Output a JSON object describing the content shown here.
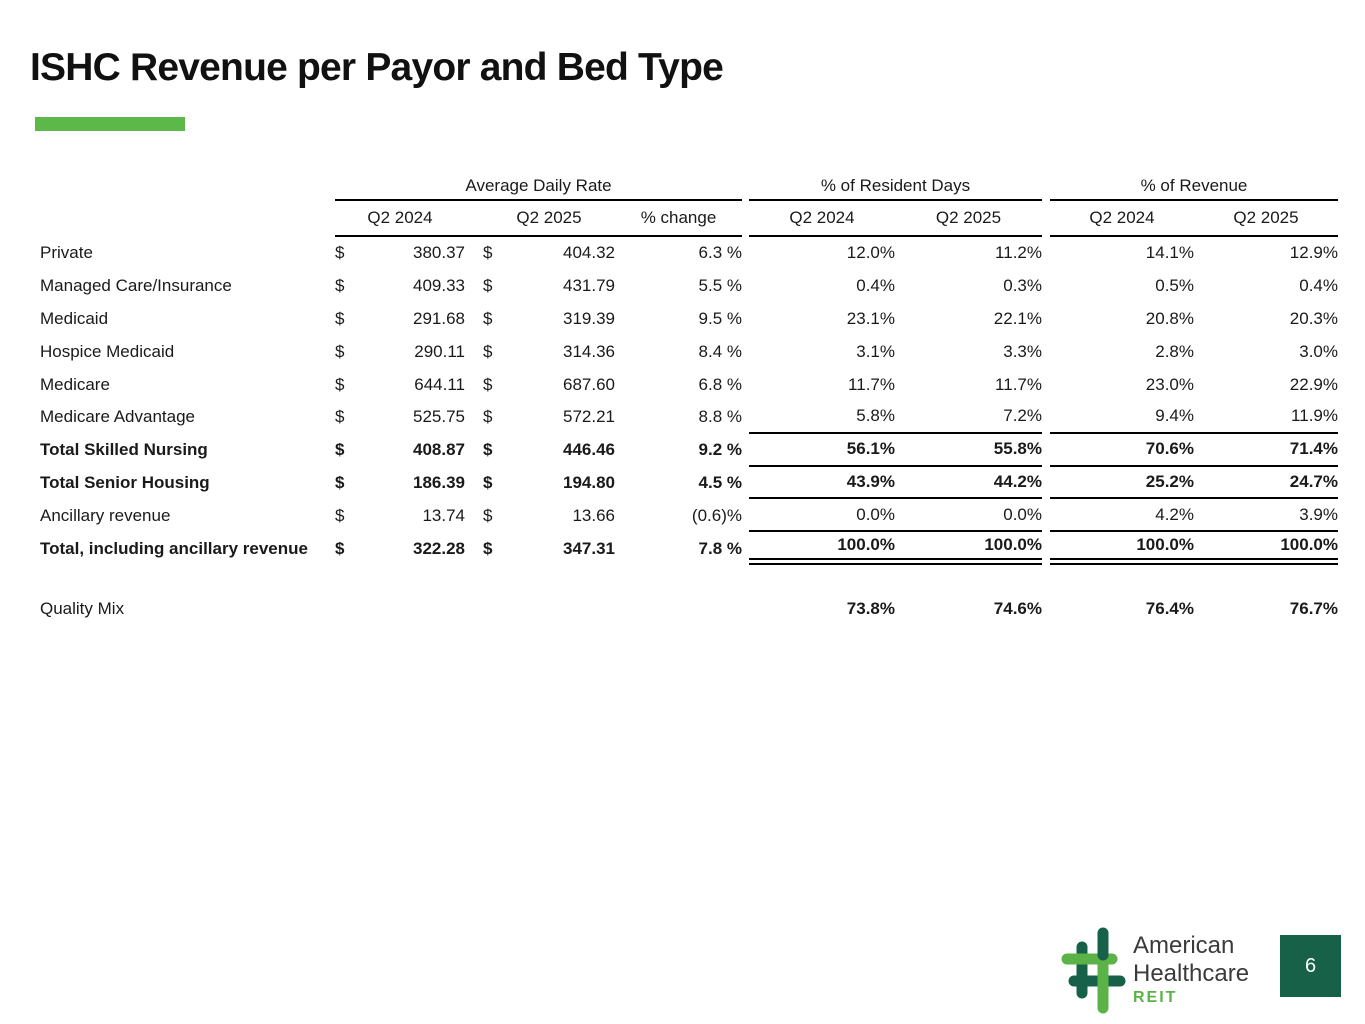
{
  "slide": {
    "title": "ISHC Revenue per Payor and Bed Type",
    "page_number": "6",
    "colors": {
      "accent_green": "#5cb848",
      "logo_dark_green": "#17604a",
      "logo_light_green": "#5bb347",
      "page_box_green": "#166147",
      "text": "#1a1a1a"
    },
    "logo": {
      "line1": "American",
      "line2": "Healthcare",
      "line3": "REIT"
    }
  },
  "table": {
    "currency_symbol": "$",
    "groups": {
      "adr": "Average Daily Rate",
      "resident_days": "% of Resident Days",
      "revenue": "% of Revenue"
    },
    "col_headers": {
      "adr_q2_2024": "Q2 2024",
      "adr_q2_2025": "Q2 2025",
      "adr_change": "% change",
      "rd_q2_2024": "Q2 2024",
      "rd_q2_2025": "Q2 2025",
      "rev_q2_2024": "Q2 2024",
      "rev_q2_2025": "Q2 2025"
    },
    "rows": [
      {
        "label": "Private",
        "bold": false,
        "rule": "none",
        "adr_2024": "380.37",
        "adr_2025": "404.32",
        "change": "6.3 %",
        "rd_2024": "12.0%",
        "rd_2025": "11.2%",
        "rev_2024": "14.1%",
        "rev_2025": "12.9%"
      },
      {
        "label": "Managed Care/Insurance",
        "bold": false,
        "rule": "none",
        "adr_2024": "409.33",
        "adr_2025": "431.79",
        "change": "5.5 %",
        "rd_2024": "0.4%",
        "rd_2025": "0.3%",
        "rev_2024": "0.5%",
        "rev_2025": "0.4%"
      },
      {
        "label": "Medicaid",
        "bold": false,
        "rule": "none",
        "adr_2024": "291.68",
        "adr_2025": "319.39",
        "change": "9.5 %",
        "rd_2024": "23.1%",
        "rd_2025": "22.1%",
        "rev_2024": "20.8%",
        "rev_2025": "20.3%"
      },
      {
        "label": "Hospice Medicaid",
        "bold": false,
        "rule": "none",
        "adr_2024": "290.11",
        "adr_2025": "314.36",
        "change": "8.4 %",
        "rd_2024": "3.1%",
        "rd_2025": "3.3%",
        "rev_2024": "2.8%",
        "rev_2025": "3.0%"
      },
      {
        "label": "Medicare",
        "bold": false,
        "rule": "none",
        "adr_2024": "644.11",
        "adr_2025": "687.60",
        "change": "6.8 %",
        "rd_2024": "11.7%",
        "rd_2025": "11.7%",
        "rev_2024": "23.0%",
        "rev_2025": "22.9%"
      },
      {
        "label": "Medicare Advantage",
        "bold": false,
        "rule": "single",
        "adr_2024": "525.75",
        "adr_2025": "572.21",
        "change": "8.8 %",
        "rd_2024": "5.8%",
        "rd_2025": "7.2%",
        "rev_2024": "9.4%",
        "rev_2025": "11.9%"
      },
      {
        "label": "Total Skilled Nursing",
        "bold": true,
        "rule": "single",
        "adr_2024": "408.87",
        "adr_2025": "446.46",
        "change": "9.2 %",
        "rd_2024": "56.1%",
        "rd_2025": "55.8%",
        "rev_2024": "70.6%",
        "rev_2025": "71.4%"
      },
      {
        "label": "Total Senior Housing",
        "bold": true,
        "rule": "single",
        "adr_2024": "186.39",
        "adr_2025": "194.80",
        "change": "4.5 %",
        "rd_2024": "43.9%",
        "rd_2025": "44.2%",
        "rev_2024": "25.2%",
        "rev_2025": "24.7%"
      },
      {
        "label": "Ancillary revenue",
        "bold": false,
        "rule": "single",
        "adr_2024": "13.74",
        "adr_2025": "13.66",
        "change": "(0.6)%",
        "rd_2024": "0.0%",
        "rd_2025": "0.0%",
        "rev_2024": "4.2%",
        "rev_2025": "3.9%"
      },
      {
        "label": "Total, including ancillary revenue",
        "bold": true,
        "rule": "double",
        "adr_2024": "322.28",
        "adr_2025": "347.31",
        "change": "7.8 %",
        "rd_2024": "100.0%",
        "rd_2025": "100.0%",
        "rev_2024": "100.0%",
        "rev_2025": "100.0%"
      }
    ],
    "quality_mix": {
      "label": "Quality Mix",
      "rd_2024": "73.8%",
      "rd_2025": "74.6%",
      "rev_2024": "76.4%",
      "rev_2025": "76.7%"
    }
  }
}
